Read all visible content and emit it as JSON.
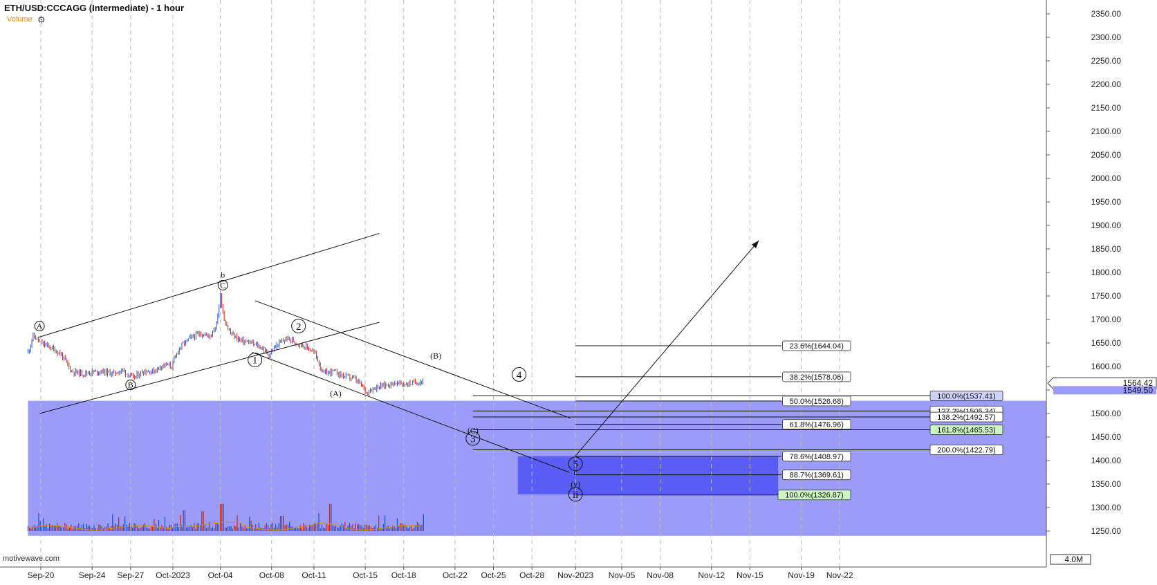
{
  "header": {
    "title": "ETH/USD:CCCAGG (Intermediate) - 1 hour",
    "volume_label": "Volume",
    "settings_icon": "gear-icon",
    "watermark": "motivewave.com"
  },
  "colors": {
    "zone_light": "#9a9cf8",
    "zone_dark": "#5a5ef5",
    "fib_green": "#ccf5c2",
    "fib_blue": "#cdd3f7",
    "bull_candle": "#1f4fbf",
    "bear_candle": "#c0271c",
    "volume_ma": "#e08a00"
  },
  "chart_data": {
    "type": "candlestick",
    "title": "ETH/USD:CCCAGG (Intermediate) - 1 hour",
    "y_axis": {
      "ticks": [
        "2350.00",
        "2300.00",
        "2250.00",
        "2200.00",
        "2150.00",
        "2100.00",
        "2050.00",
        "2000.00",
        "1950.00",
        "1900.00",
        "1850.00",
        "1800.00",
        "1750.00",
        "1700.00",
        "1650.00",
        "1600.00",
        "1550.00",
        "1500.00",
        "1450.00",
        "1400.00",
        "1350.00",
        "1300.00",
        "1250.00"
      ],
      "range": [
        1230,
        2365
      ],
      "current_price": "1564.42",
      "secondary_price": "1549.50",
      "volume_max_label": "4.0M"
    },
    "x_axis": {
      "ticks": [
        "Sep-20",
        "Sep-24",
        "Sep-27",
        "Oct-2023",
        "Oct-04",
        "Oct-08",
        "Oct-11",
        "Oct-15",
        "Oct-18",
        "Oct-22",
        "Oct-25",
        "Oct-28",
        "Nov-2023",
        "Nov-05",
        "Nov-08",
        "Nov-12",
        "Nov-15",
        "Nov-19",
        "Nov-22"
      ],
      "grid": "dashed-vertical"
    },
    "price_path": [
      [
        0.0,
        1630
      ],
      [
        0.4,
        1665
      ],
      [
        1.0,
        1650
      ],
      [
        1.8,
        1640
      ],
      [
        2.6,
        1625
      ],
      [
        3.4,
        1590
      ],
      [
        4.2,
        1585
      ],
      [
        5.0,
        1588
      ],
      [
        5.8,
        1590
      ],
      [
        6.6,
        1585
      ],
      [
        7.4,
        1592
      ],
      [
        8.2,
        1575
      ],
      [
        9.0,
        1590
      ],
      [
        9.8,
        1590
      ],
      [
        10.6,
        1605
      ],
      [
        11.2,
        1600
      ],
      [
        11.8,
        1640
      ],
      [
        12.6,
        1660
      ],
      [
        13.4,
        1670
      ],
      [
        14.2,
        1665
      ],
      [
        14.7,
        1690
      ],
      [
        15.0,
        1750
      ],
      [
        15.3,
        1700
      ],
      [
        15.8,
        1670
      ],
      [
        16.6,
        1655
      ],
      [
        17.4,
        1650
      ],
      [
        18.2,
        1640
      ],
      [
        18.8,
        1625
      ],
      [
        19.4,
        1645
      ],
      [
        20.2,
        1660
      ],
      [
        21.0,
        1650
      ],
      [
        21.8,
        1640
      ],
      [
        22.4,
        1628
      ],
      [
        23.0,
        1585
      ],
      [
        23.8,
        1590
      ],
      [
        24.6,
        1580
      ],
      [
        25.4,
        1575
      ],
      [
        26.0,
        1560
      ],
      [
        26.4,
        1545
      ],
      [
        27.0,
        1555
      ],
      [
        27.8,
        1560
      ],
      [
        28.6,
        1565
      ],
      [
        29.4,
        1562
      ],
      [
        30.2,
        1566
      ],
      [
        30.9,
        1570
      ]
    ],
    "volume": {
      "label": "Volume",
      "spikes": [
        [
          12.2,
          0.75
        ],
        [
          13.6,
          0.72
        ],
        [
          15.1,
          0.98
        ],
        [
          23.6,
          0.98
        ],
        [
          19.8,
          0.55
        ]
      ]
    },
    "zones": [
      {
        "name": "light-support-zone",
        "y_top": 1527,
        "y_bottom": 1240,
        "x_from": 0,
        "x_to": "end"
      },
      {
        "name": "dark-target-zone",
        "y_top": 1409,
        "y_bottom": 1328,
        "x_from": 38.2,
        "x_to": 58.5
      }
    ],
    "trend_lines": [
      {
        "name": "upper-channel-line",
        "from": [
          0.8,
          1662
        ],
        "to": [
          27.4,
          1883
        ]
      },
      {
        "name": "lower-channel-line",
        "from": [
          0.9,
          1500
        ],
        "to": [
          27.4,
          1694
        ]
      },
      {
        "name": "descending-upper-line",
        "from": [
          17.7,
          1740
        ],
        "to": [
          42.3,
          1490
        ]
      },
      {
        "name": "descending-lower-line",
        "from": [
          17.5,
          1630
        ],
        "to": [
          42.2,
          1375
        ]
      },
      {
        "name": "projection-arrow",
        "from": [
          42.7,
          1410
        ],
        "to": [
          57.0,
          1868
        ]
      }
    ],
    "wave_labels": [
      {
        "text": "A",
        "x": 0.9,
        "y": 1686,
        "circled": true
      },
      {
        "text": "b",
        "x": 15.2,
        "y": 1795,
        "circled": false
      },
      {
        "text": "C",
        "x": 15.2,
        "y": 1773,
        "circled": true
      },
      {
        "text": "B",
        "x": 8.0,
        "y": 1561,
        "circled": true
      },
      {
        "text": "1",
        "x": 17.7,
        "y": 1614,
        "circled": true
      },
      {
        "text": "2",
        "x": 21.1,
        "y": 1686,
        "circled": true
      },
      {
        "text": "(A)",
        "x": 24.0,
        "y": 1543,
        "circled": false
      },
      {
        "text": "(B)",
        "x": 31.8,
        "y": 1623,
        "circled": false
      },
      {
        "text": "4",
        "x": 38.3,
        "y": 1583,
        "circled": true
      },
      {
        "text": "(C)",
        "x": 34.7,
        "y": 1464,
        "circled": false
      },
      {
        "text": "3",
        "x": 34.7,
        "y": 1447,
        "circled": true
      },
      {
        "text": "5",
        "x": 42.7,
        "y": 1393,
        "circled": true
      },
      {
        "text": "c",
        "x": 42.7,
        "y": 1375,
        "circled": false
      },
      {
        "text": "(y)",
        "x": 42.7,
        "y": 1350,
        "circled": false
      },
      {
        "text": "ii",
        "x": 42.7,
        "y": 1328,
        "circled": true
      }
    ],
    "fib_retracements": [
      {
        "label": "23.6%(1644.04)",
        "value": 1644.04,
        "line_x_from": 42.7,
        "style": "plain"
      },
      {
        "label": "38.2%(1578.06)",
        "value": 1578.06,
        "line_x_from": 42.7,
        "style": "plain"
      },
      {
        "label": "50.0%(1526.68)",
        "value": 1526.68,
        "line_x_from": 42.7,
        "style": "plain"
      },
      {
        "label": "61.8%(1476.96)",
        "value": 1476.96,
        "line_x_from": 42.7,
        "style": "plain"
      },
      {
        "label": "78.6%(1408.97)",
        "value": 1408.97,
        "line_x_from": 42.7,
        "style": "plain"
      },
      {
        "label": "88.7%(1369.61)",
        "value": 1369.61,
        "line_x_from": 42.7,
        "style": "plain"
      },
      {
        "label": "100.0%(1326.87)",
        "value": 1326.87,
        "line_x_from": 42.7,
        "style": "green"
      }
    ],
    "fib_extensions": [
      {
        "label": "100.0%(1537.41)",
        "value": 1537.41,
        "line_x_from": 34.7,
        "style": "blue"
      },
      {
        "label": "127.2%(1505.34)",
        "value": 1505.34,
        "line_x_from": 34.7,
        "style": "plain"
      },
      {
        "label": "138.2%(1492.57)",
        "value": 1492.57,
        "line_x_from": 34.7,
        "style": "plain"
      },
      {
        "label": "161.8%(1465.53)",
        "value": 1465.53,
        "line_x_from": 34.7,
        "style": "green"
      },
      {
        "label": "200.0%(1422.79)",
        "value": 1422.79,
        "line_x_from": 34.7,
        "style": "plain"
      }
    ]
  }
}
